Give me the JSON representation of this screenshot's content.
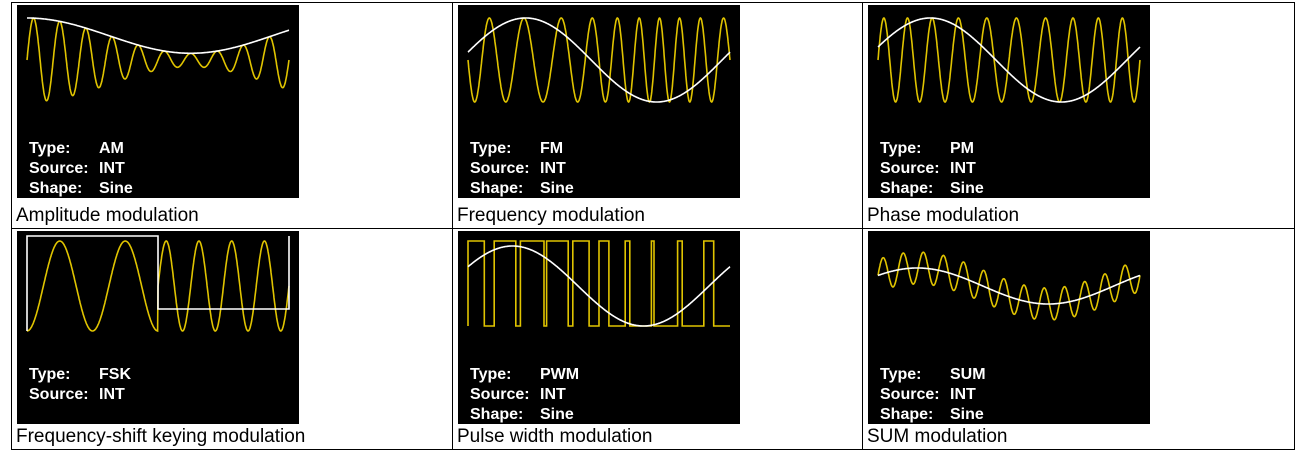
{
  "table": {
    "rows": [
      [
        {
          "screen": {
            "lines": [
              {
                "label": "Type:",
                "value": "AM"
              },
              {
                "label": "Source:",
                "value": "INT"
              },
              {
                "label": "Shape:",
                "value": "Sine"
              }
            ]
          },
          "caption": "Amplitude modulation"
        },
        {
          "screen": {
            "lines": [
              {
                "label": "Type:",
                "value": "FM"
              },
              {
                "label": "Source:",
                "value": "INT"
              },
              {
                "label": "Shape:",
                "value": "Sine"
              }
            ]
          },
          "caption": "Frequency modulation"
        },
        {
          "screen": {
            "lines": [
              {
                "label": "Type:",
                "value": "PM"
              },
              {
                "label": "Source:",
                "value": "INT"
              },
              {
                "label": "Shape:",
                "value": "Sine"
              }
            ]
          },
          "caption": "Phase modulation"
        }
      ],
      [
        {
          "screen": {
            "lines": [
              {
                "label": "Type:",
                "value": "FSK"
              },
              {
                "label": "Source:",
                "value": "INT"
              }
            ]
          },
          "caption": "Frequency-shift keying modulation"
        },
        {
          "screen": {
            "lines": [
              {
                "label": "Type:",
                "value": "PWM"
              },
              {
                "label": "Source:",
                "value": "INT"
              },
              {
                "label": "Shape:",
                "value": "Sine"
              }
            ]
          },
          "caption": "Pulse width modulation"
        },
        {
          "screen": {
            "lines": [
              {
                "label": "Type:",
                "value": "SUM"
              },
              {
                "label": "Source:",
                "value": "INT"
              },
              {
                "label": "Shape:",
                "value": "Sine"
              }
            ]
          },
          "caption": "SUM modulation"
        }
      ]
    ]
  }
}
